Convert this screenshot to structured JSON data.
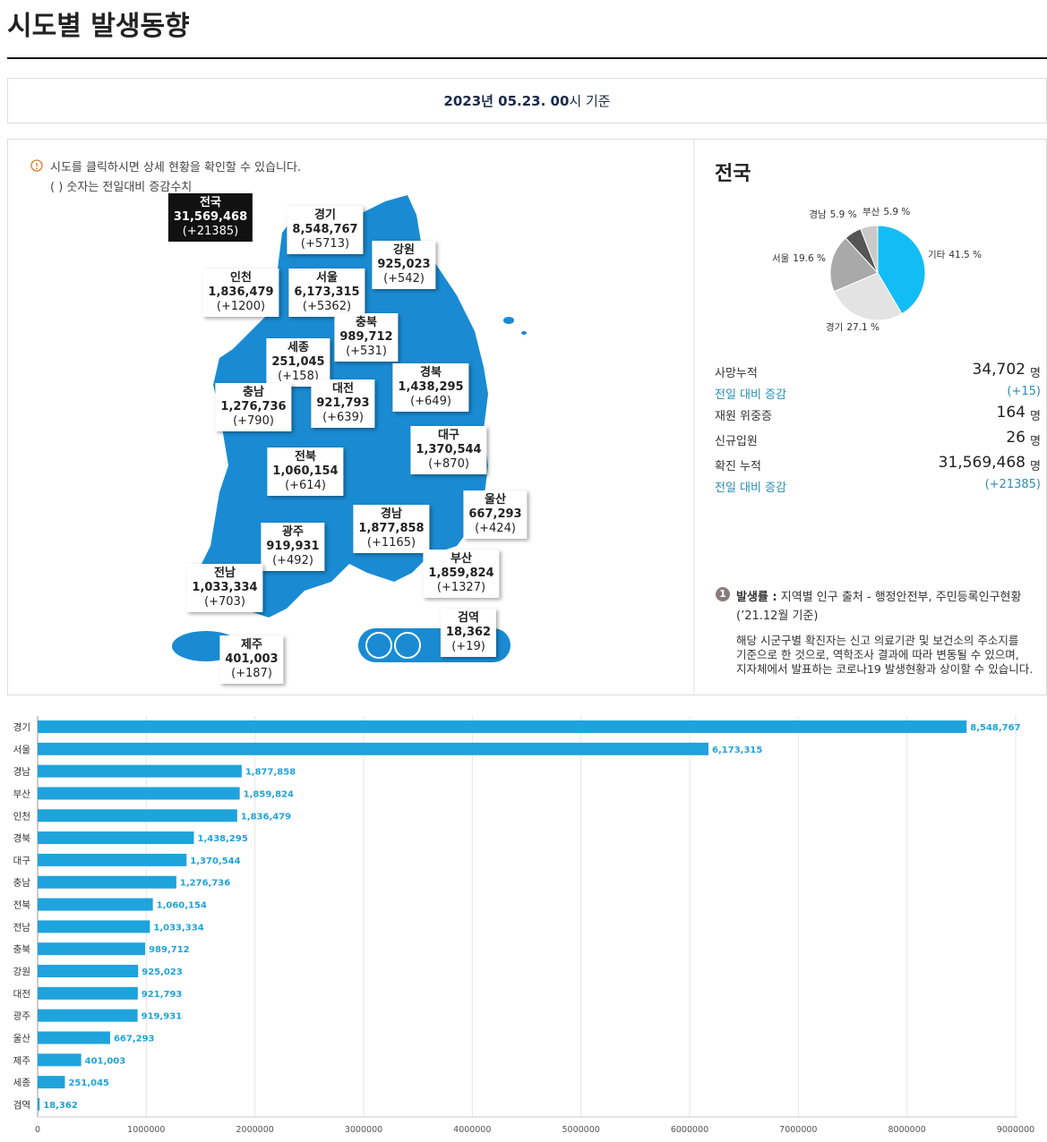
{
  "header": {
    "title": "시도별 발생동향",
    "date_emphasis": "2023년 05.23. 00",
    "date_suffix": "시 기준"
  },
  "map": {
    "notice": "시도를 클릭하시면 상세 현황을 확인할 수 있습니다.",
    "legend_note": "( ) 숫자는 전일대비 증감수치",
    "regions": [
      {
        "name": "전국",
        "total": "31,569,468",
        "change": "(+21385)"
      },
      {
        "name": "경기",
        "total": "8,548,767",
        "change": "(+5713)"
      },
      {
        "name": "강원",
        "total": "925,023",
        "change": "(+542)"
      },
      {
        "name": "인천",
        "total": "1,836,479",
        "change": "(+1200)"
      },
      {
        "name": "서울",
        "total": "6,173,315",
        "change": "(+5362)"
      },
      {
        "name": "충북",
        "total": "989,712",
        "change": "(+531)"
      },
      {
        "name": "세종",
        "total": "251,045",
        "change": "(+158)"
      },
      {
        "name": "대전",
        "total": "921,793",
        "change": "(+639)"
      },
      {
        "name": "경북",
        "total": "1,438,295",
        "change": "(+649)"
      },
      {
        "name": "충남",
        "total": "1,276,736",
        "change": "(+790)"
      },
      {
        "name": "대구",
        "total": "1,370,544",
        "change": "(+870)"
      },
      {
        "name": "전북",
        "total": "1,060,154",
        "change": "(+614)"
      },
      {
        "name": "울산",
        "total": "667,293",
        "change": "(+424)"
      },
      {
        "name": "경남",
        "total": "1,877,858",
        "change": "(+1165)"
      },
      {
        "name": "광주",
        "total": "919,931",
        "change": "(+492)"
      },
      {
        "name": "부산",
        "total": "1,859,824",
        "change": "(+1327)"
      },
      {
        "name": "전남",
        "total": "1,033,334",
        "change": "(+703)"
      },
      {
        "name": "검역",
        "total": "18,362",
        "change": "(+19)"
      },
      {
        "name": "제주",
        "total": "401,003",
        "change": "(+187)"
      }
    ]
  },
  "summary": {
    "title": "전국",
    "rows": [
      {
        "label": "사망누적",
        "value": "34,702",
        "unit": "명"
      },
      {
        "label": "전일 대비 증감",
        "value": "(+15)"
      },
      {
        "label": "재원 위중증",
        "value": "164",
        "unit": "명"
      },
      {
        "label": "신규입원",
        "value": "26",
        "unit": "명"
      },
      {
        "label": "확진 누적",
        "value": "31,569,468",
        "unit": "명"
      },
      {
        "label": "전일 대비 증감",
        "value": "(+21385)"
      }
    ]
  },
  "note": {
    "number": "1",
    "label": "발생률 :",
    "source": "지역별 인구 출처 - 행정안전부, 주민등록인구현황",
    "source_date": "(’21.12월 기준)",
    "lines": [
      "해당 시군구별 확진자는 신고 의료기관 및 보건소의 주소지를",
      "기준으로 한 것으로, 역학조사 결과에 따라 변동될 수 있으며,",
      "지자체에서 발표하는 코로나19 발생현황과 상이할 수 있습니다."
    ]
  },
  "chart_data": [
    {
      "type": "pie",
      "categories": [
        "기타",
        "경기",
        "서울",
        "경남",
        "부산"
      ],
      "values": [
        41.5,
        27.1,
        19.6,
        5.9,
        5.9
      ],
      "value_labels": [
        "41.5 %",
        "27.1 %",
        "19.6 %",
        "5.9 %",
        "5.9 %"
      ],
      "colors": [
        "#12bdf5",
        "#e3e3e3",
        "#a9a9a9",
        "#555555",
        "#cacaca"
      ]
    },
    {
      "type": "bar",
      "orientation": "horizontal",
      "categories": [
        "경기",
        "서울",
        "경남",
        "부산",
        "인천",
        "경북",
        "대구",
        "충남",
        "전북",
        "전남",
        "충북",
        "강원",
        "대전",
        "광주",
        "울산",
        "제주",
        "세종",
        "검역"
      ],
      "values": [
        8548767,
        6173315,
        1877858,
        1859824,
        1836479,
        1438295,
        1370544,
        1276736,
        1060154,
        1033334,
        989712,
        925023,
        921793,
        919931,
        667293,
        401003,
        251045,
        18362
      ],
      "value_labels": [
        "8,548,767",
        "6,173,315",
        "1,877,858",
        "1,859,824",
        "1,836,479",
        "1,438,295",
        "1,370,544",
        "1,276,736",
        "1,060,154",
        "1,033,334",
        "989,712",
        "925,023",
        "921,793",
        "919,931",
        "667,293",
        "401,003",
        "251,045",
        "18,362"
      ],
      "color": "#1fa3dc",
      "xlim": [
        0,
        9000000
      ],
      "xticks": [
        0,
        1000000,
        2000000,
        3000000,
        4000000,
        5000000,
        6000000,
        7000000,
        8000000,
        9000000
      ],
      "grid": true
    }
  ]
}
